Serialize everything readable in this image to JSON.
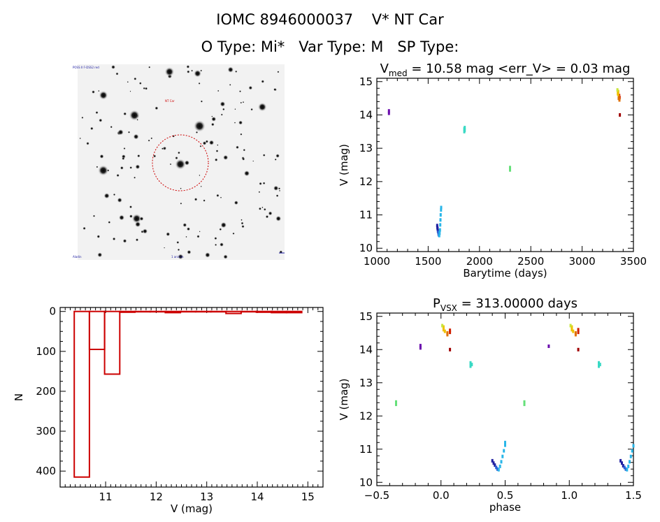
{
  "header": {
    "line1_id": "IOMC 8946000037",
    "line1_name": "V* NT Car",
    "line2": "O Type: Mi*   Var Type: M   SP Type:"
  },
  "image_panel": {
    "labels": [
      "POSS II F-DSS2 red",
      "NT Car",
      "Aladin",
      "1 arcmin"
    ]
  },
  "colors": {
    "histogram": "#cc0000",
    "circle": "#cc0000",
    "points": [
      "#6a0dad",
      "#1f1fa0",
      "#2a5fd6",
      "#1e90ff",
      "#29b6e8",
      "#38d9c4",
      "#66e07a",
      "#c8e63a",
      "#f0c000",
      "#e07000",
      "#d02000",
      "#a00000"
    ]
  },
  "chart_data": [
    {
      "type": "scatter",
      "title": "V_med = 10.58 mag <err_V> = 0.03 mag",
      "title_parts": {
        "v": "V",
        "sub": "med",
        "rest": " = 10.58 mag <err_V> = 0.03 mag"
      },
      "xlabel": "Barytime (days)",
      "ylabel": "V (mag)",
      "xlim": [
        1000,
        3500
      ],
      "ylim": [
        15.1,
        9.9
      ],
      "x_ticks": [
        1000,
        1500,
        2000,
        2500,
        3000,
        3500
      ],
      "y_ticks": [
        10,
        11,
        12,
        13,
        14,
        15
      ],
      "groups": [
        {
          "color": "#6a0dad",
          "points": [
            [
              1118,
              14.05
            ],
            [
              1118,
              14.12
            ]
          ]
        },
        {
          "color": "#1f1fa0",
          "points": [
            [
              1588,
              10.68
            ],
            [
              1590,
              10.62
            ],
            [
              1592,
              10.58
            ],
            [
              1595,
              10.52
            ]
          ]
        },
        {
          "color": "#2a5fd6",
          "points": [
            [
              1598,
              10.48
            ],
            [
              1601,
              10.43
            ],
            [
              1604,
              10.4
            ]
          ]
        },
        {
          "color": "#29b6e8",
          "points": [
            [
              1608,
              10.38
            ],
            [
              1612,
              10.45
            ],
            [
              1615,
              10.55
            ],
            [
              1618,
              10.7
            ],
            [
              1620,
              10.85
            ],
            [
              1622,
              11.0
            ],
            [
              1625,
              11.15
            ],
            [
              1627,
              11.22
            ]
          ]
        },
        {
          "color": "#38d9c4",
          "points": [
            [
              1852,
              13.5
            ],
            [
              1852,
              13.58
            ],
            [
              1856,
              13.62
            ],
            [
              1856,
              13.54
            ]
          ]
        },
        {
          "color": "#66e07a",
          "points": [
            [
              2298,
              12.35
            ],
            [
              2298,
              12.42
            ]
          ]
        },
        {
          "color": "#a00000",
          "points": [
            [
              3368,
              14.0
            ]
          ]
        },
        {
          "color": "#d02000",
          "points": [
            [
              3362,
              14.58
            ],
            [
              3366,
              14.52
            ]
          ]
        },
        {
          "color": "#e07000",
          "points": [
            [
              3356,
              14.5
            ],
            [
              3358,
              14.55
            ],
            [
              3364,
              14.45
            ]
          ]
        },
        {
          "color": "#f0c000",
          "points": [
            [
              3348,
              14.65
            ],
            [
              3352,
              14.7
            ],
            [
              3350,
              14.62
            ]
          ]
        },
        {
          "color": "#c8e63a",
          "points": [
            [
              3344,
              14.75
            ]
          ]
        }
      ]
    },
    {
      "type": "bar",
      "title": "",
      "xlabel": "V (mag)",
      "ylabel": "N",
      "xlim": [
        10.1,
        15.3
      ],
      "ylim": [
        -10,
        440
      ],
      "x_ticks": [
        11,
        12,
        13,
        14,
        15
      ],
      "y_ticks": [
        0,
        100,
        200,
        300,
        400
      ],
      "bin_width": 0.3,
      "bin_starts": [
        10.38,
        10.68,
        10.98,
        11.28,
        11.58,
        11.88,
        12.18,
        12.48,
        12.78,
        13.08,
        13.38,
        13.68,
        13.98,
        14.28,
        14.58
      ],
      "values": [
        415,
        95,
        157,
        2,
        0,
        0,
        3,
        0,
        0,
        0,
        5,
        0,
        2,
        3,
        3
      ]
    },
    {
      "type": "scatter",
      "title": "P_VSX = 313.00000 days",
      "title_parts": {
        "p": "P",
        "sub": "VSX",
        "rest": " = 313.00000 days"
      },
      "xlabel": "phase",
      "ylabel": "V (mag)",
      "xlim": [
        -0.5,
        1.5
      ],
      "ylim": [
        15.1,
        9.9
      ],
      "x_ticks": [
        -0.5,
        0.0,
        0.5,
        1.0,
        1.5
      ],
      "x_tick_labels": [
        "−0.5",
        "0.0",
        "0.5",
        "1.0",
        "1.5"
      ],
      "y_ticks": [
        10,
        11,
        12,
        13,
        14,
        15
      ],
      "groups": [
        {
          "color": "#6a0dad",
          "points": [
            [
              -0.16,
              14.05
            ],
            [
              -0.16,
              14.12
            ],
            [
              0.84,
              14.1
            ]
          ]
        },
        {
          "color": "#1f1fa0",
          "points": [
            [
              0.4,
              10.65
            ],
            [
              0.41,
              10.58
            ],
            [
              0.42,
              10.52
            ],
            [
              1.4,
              10.65
            ],
            [
              1.41,
              10.58
            ],
            [
              1.42,
              10.5
            ]
          ]
        },
        {
          "color": "#2a5fd6",
          "points": [
            [
              0.43,
              10.45
            ],
            [
              0.44,
              10.4
            ],
            [
              1.43,
              10.45
            ],
            [
              1.44,
              10.4
            ]
          ]
        },
        {
          "color": "#29b6e8",
          "points": [
            [
              0.45,
              10.38
            ],
            [
              0.46,
              10.48
            ],
            [
              0.47,
              10.62
            ],
            [
              0.48,
              10.78
            ],
            [
              0.49,
              10.95
            ],
            [
              0.5,
              11.12
            ],
            [
              0.5,
              11.2
            ],
            [
              1.45,
              10.38
            ],
            [
              1.46,
              10.48
            ],
            [
              1.47,
              10.62
            ],
            [
              1.48,
              10.78
            ],
            [
              1.49,
              10.95
            ],
            [
              1.5,
              11.1
            ]
          ]
        },
        {
          "color": "#38d9c4",
          "points": [
            [
              0.23,
              13.5
            ],
            [
              0.23,
              13.6
            ],
            [
              0.24,
              13.55
            ],
            [
              1.23,
              13.5
            ],
            [
              1.23,
              13.6
            ],
            [
              1.24,
              13.55
            ]
          ]
        },
        {
          "color": "#66e07a",
          "points": [
            [
              -0.35,
              12.35
            ],
            [
              -0.35,
              12.42
            ],
            [
              0.65,
              12.35
            ],
            [
              0.65,
              12.42
            ]
          ]
        },
        {
          "color": "#a00000",
          "points": [
            [
              0.07,
              14.0
            ],
            [
              1.07,
              14.0
            ]
          ]
        },
        {
          "color": "#d02000",
          "points": [
            [
              0.07,
              14.58
            ],
            [
              0.07,
              14.52
            ],
            [
              1.07,
              14.6
            ],
            [
              1.07,
              14.52
            ]
          ]
        },
        {
          "color": "#e07000",
          "points": [
            [
              0.05,
              14.45
            ],
            [
              0.05,
              14.5
            ],
            [
              1.05,
              14.45
            ],
            [
              1.05,
              14.5
            ]
          ]
        },
        {
          "color": "#f0c000",
          "points": [
            [
              0.02,
              14.6
            ],
            [
              0.02,
              14.68
            ],
            [
              0.03,
              14.55
            ],
            [
              1.02,
              14.6
            ],
            [
              1.02,
              14.68
            ],
            [
              1.03,
              14.55
            ]
          ]
        },
        {
          "color": "#c8e63a",
          "points": [
            [
              0.01,
              14.72
            ],
            [
              1.01,
              14.72
            ]
          ]
        }
      ]
    }
  ]
}
